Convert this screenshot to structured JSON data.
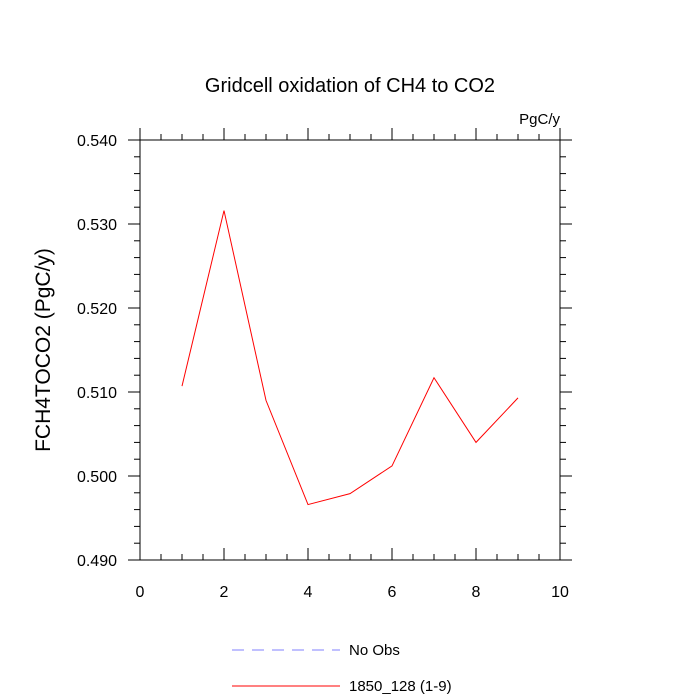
{
  "chart_data": {
    "type": "line",
    "title": "Gridcell oxidation of CH4 to CO2",
    "units": "PgC/y",
    "ylabel": "FCH4TOCO2  (PgC/y)",
    "xlabel": "",
    "xlim": [
      0,
      10
    ],
    "ylim": [
      0.49,
      0.54
    ],
    "xticks": [
      "0",
      "2",
      "4",
      "6",
      "8",
      "10"
    ],
    "yticks": [
      "0.490",
      "0.500",
      "0.510",
      "0.520",
      "0.530",
      "0.540"
    ],
    "grid": false,
    "legend_position": "bottom",
    "series": [
      {
        "name": "No Obs",
        "color": "#8080ff",
        "dash": "dashed",
        "x": [],
        "y": []
      },
      {
        "name": "1850_128 (1-9)",
        "color": "#ff0000",
        "dash": "solid",
        "x": [
          1,
          2,
          3,
          4,
          5,
          6,
          7,
          8,
          9
        ],
        "y": [
          0.5107,
          0.5316,
          0.509,
          0.4966,
          0.4979,
          0.5012,
          0.5117,
          0.504,
          0.5093
        ]
      }
    ]
  }
}
